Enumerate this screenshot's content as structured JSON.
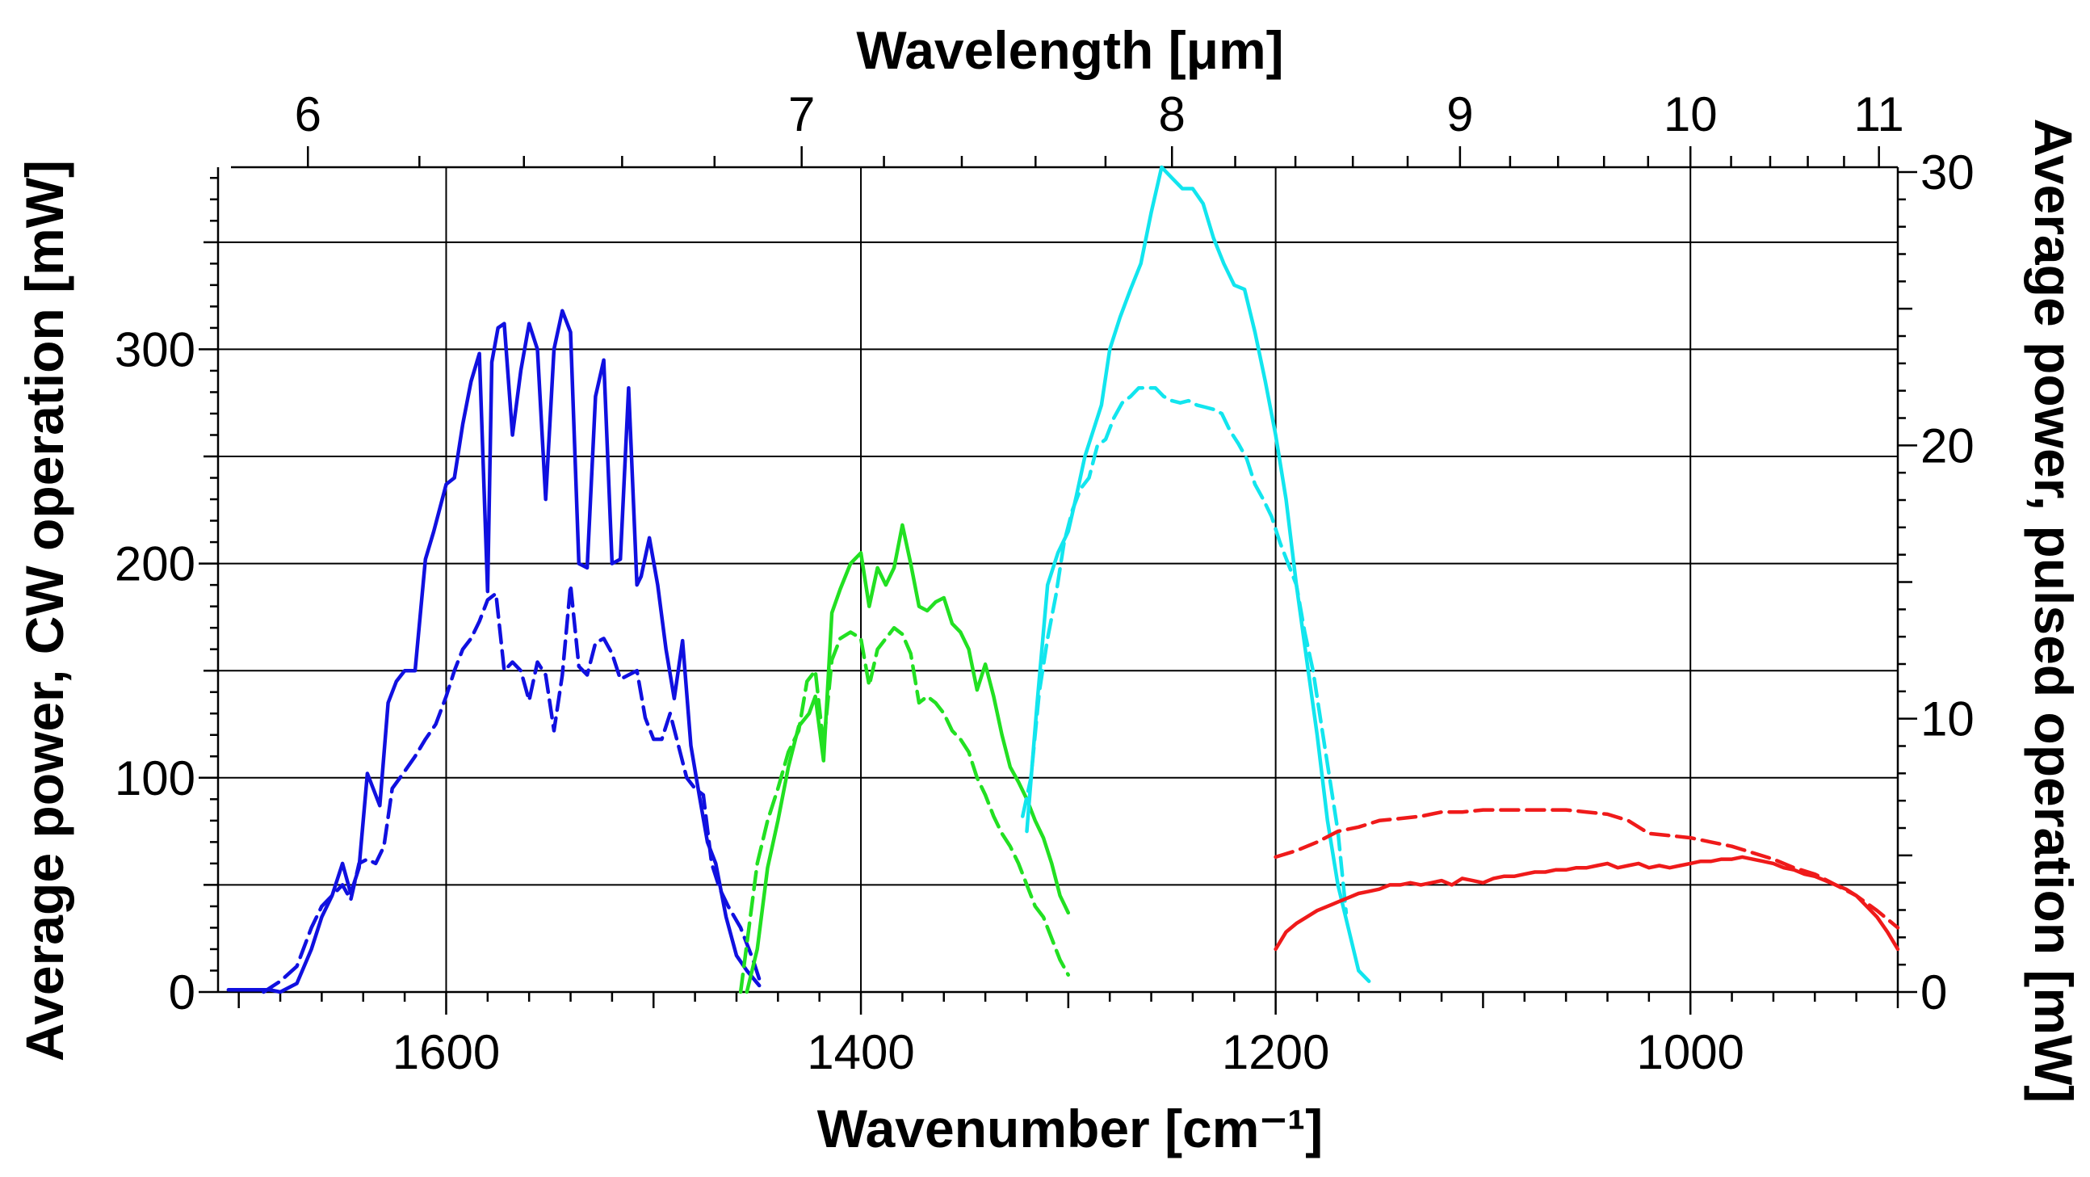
{
  "chart_data": {
    "type": "line",
    "xlabel_bottom": "Wavenumber [cm⁻¹]",
    "xlabel_top": "Wavelength [μm]",
    "ylabel_left": "Average power, CW operation [mW]",
    "ylabel_right": "Average power, pulsed operation [mW]",
    "xlim_wavenumber": [
      1710,
      900
    ],
    "ylim_left": [
      0,
      385
    ],
    "ylim_right": [
      0,
      30
    ],
    "bottom_ticks": [
      1600,
      1400,
      1200,
      1000
    ],
    "left_ticks": [
      0,
      100,
      200,
      300
    ],
    "right_ticks": [
      0,
      10,
      20,
      30
    ],
    "top_ticks": [
      6,
      7,
      8,
      9,
      10,
      11
    ],
    "top_minor_ticks": [
      6.2,
      6.4,
      6.6,
      6.8,
      7.2,
      7.4,
      7.6,
      7.8,
      8.2,
      8.4,
      8.6,
      8.8,
      9.2,
      9.4,
      9.6,
      9.8,
      10.2,
      10.4,
      10.6,
      10.8
    ],
    "horizontal_grid_left": [
      50,
      100,
      150,
      200,
      250,
      300,
      350
    ],
    "grid": true,
    "series": [
      {
        "name": "blue-cw",
        "color": "#1010e0",
        "style": "solid",
        "axis": "left",
        "x": [
          1705,
          1695,
          1685,
          1680,
          1672,
          1665,
          1660,
          1655,
          1650,
          1646,
          1642,
          1638,
          1632,
          1628,
          1624,
          1620,
          1615,
          1610,
          1606,
          1600,
          1596,
          1592,
          1588,
          1584,
          1580,
          1578,
          1575,
          1572,
          1568,
          1564,
          1560,
          1556,
          1552,
          1548,
          1544,
          1540,
          1536,
          1532,
          1528,
          1524,
          1520,
          1516,
          1512,
          1508,
          1506,
          1502,
          1498,
          1494,
          1490,
          1486,
          1482,
          1478,
          1474,
          1470,
          1465,
          1460,
          1455,
          1449
        ],
        "y": [
          1,
          1,
          1,
          0,
          4,
          20,
          35,
          45,
          60,
          46,
          58,
          102,
          87,
          135,
          145,
          150,
          150,
          202,
          215,
          237,
          240,
          265,
          285,
          298,
          187,
          294,
          310,
          312,
          260,
          290,
          312,
          300,
          230,
          300,
          318,
          308,
          200,
          198,
          278,
          295,
          200,
          202,
          282,
          190,
          194,
          212,
          190,
          160,
          137,
          164,
          115,
          92,
          70,
          60,
          35,
          17,
          10,
          3
        ]
      },
      {
        "name": "blue-pulsed",
        "color": "#1010e0",
        "style": "dashed",
        "axis": "left",
        "x": [
          1688,
          1680,
          1672,
          1665,
          1660,
          1655,
          1650,
          1646,
          1642,
          1638,
          1634,
          1630,
          1626,
          1620,
          1615,
          1610,
          1605,
          1600,
          1596,
          1592,
          1588,
          1584,
          1580,
          1576,
          1572,
          1568,
          1564,
          1560,
          1556,
          1552,
          1548,
          1544,
          1540,
          1536,
          1532,
          1528,
          1524,
          1520,
          1516,
          1512,
          1508,
          1504,
          1500,
          1496,
          1492,
          1488,
          1484,
          1480,
          1476,
          1472,
          1468,
          1464,
          1458,
          1452,
          1448
        ],
        "y": [
          0,
          5,
          12,
          30,
          40,
          45,
          50,
          43,
          60,
          62,
          60,
          68,
          95,
          103,
          110,
          118,
          125,
          138,
          150,
          160,
          165,
          173,
          183,
          186,
          150,
          154,
          150,
          136,
          154,
          148,
          122,
          148,
          190,
          152,
          148,
          163,
          165,
          158,
          146,
          148,
          150,
          128,
          118,
          118,
          130,
          115,
          100,
          95,
          92,
          60,
          48,
          40,
          30,
          15,
          3
        ]
      },
      {
        "name": "green-cw",
        "color": "#22e022",
        "style": "solid",
        "axis": "left",
        "x": [
          1455,
          1450,
          1445,
          1440,
          1435,
          1430,
          1425,
          1422,
          1418,
          1414,
          1410,
          1405,
          1400,
          1396,
          1392,
          1388,
          1384,
          1380,
          1376,
          1372,
          1368,
          1364,
          1360,
          1356,
          1352,
          1348,
          1344,
          1340,
          1336,
          1332,
          1328,
          1324,
          1320,
          1316,
          1312,
          1308,
          1304,
          1300
        ],
        "y": [
          0,
          20,
          58,
          80,
          105,
          124,
          130,
          138,
          108,
          177,
          188,
          200,
          205,
          180,
          198,
          190,
          198,
          218,
          200,
          180,
          178,
          182,
          184,
          172,
          168,
          160,
          141,
          153,
          138,
          120,
          105,
          98,
          90,
          80,
          72,
          60,
          45,
          37
        ]
      },
      {
        "name": "green-pulsed",
        "color": "#22e022",
        "style": "dashed",
        "axis": "left",
        "x": [
          1458,
          1450,
          1445,
          1440,
          1435,
          1430,
          1426,
          1422,
          1418,
          1414,
          1410,
          1405,
          1400,
          1396,
          1392,
          1388,
          1384,
          1380,
          1376,
          1372,
          1368,
          1364,
          1360,
          1356,
          1352,
          1348,
          1344,
          1340,
          1336,
          1332,
          1328,
          1324,
          1320,
          1316,
          1312,
          1308,
          1304,
          1300
        ],
        "y": [
          0,
          60,
          80,
          95,
          112,
          122,
          145,
          150,
          115,
          155,
          165,
          168,
          165,
          143,
          160,
          165,
          170,
          167,
          158,
          135,
          138,
          135,
          130,
          122,
          118,
          112,
          100,
          92,
          82,
          74,
          68,
          60,
          50,
          40,
          35,
          25,
          15,
          8
        ]
      },
      {
        "name": "cyan-cw",
        "color": "#12e5ee",
        "style": "solid",
        "axis": "left",
        "x": [
          1320,
          1315,
          1310,
          1305,
          1300,
          1296,
          1292,
          1288,
          1284,
          1280,
          1275,
          1270,
          1265,
          1260,
          1255,
          1250,
          1245,
          1240,
          1235,
          1230,
          1225,
          1220,
          1215,
          1210,
          1205,
          1200,
          1195,
          1190,
          1185,
          1180,
          1175,
          1170,
          1165,
          1160,
          1155
        ],
        "y": [
          75,
          135,
          190,
          205,
          215,
          232,
          250,
          262,
          274,
          300,
          315,
          328,
          340,
          364,
          385,
          380,
          375,
          375,
          368,
          352,
          340,
          330,
          328,
          308,
          285,
          260,
          230,
          190,
          155,
          120,
          80,
          50,
          30,
          10,
          5
        ]
      },
      {
        "name": "cyan-pulsed",
        "color": "#12e5ee",
        "style": "dashed",
        "axis": "left",
        "x": [
          1322,
          1318,
          1314,
          1310,
          1306,
          1302,
          1298,
          1294,
          1290,
          1286,
          1282,
          1278,
          1274,
          1270,
          1266,
          1262,
          1258,
          1254,
          1250,
          1246,
          1242,
          1238,
          1234,
          1230,
          1226,
          1222,
          1218,
          1214,
          1210,
          1206,
          1202,
          1198,
          1194,
          1190,
          1186,
          1182,
          1178,
          1174,
          1170,
          1166
        ],
        "y": [
          82,
          100,
          140,
          165,
          185,
          210,
          225,
          235,
          240,
          255,
          258,
          268,
          275,
          278,
          282,
          282,
          282,
          278,
          276,
          275,
          276,
          274,
          273,
          272,
          270,
          262,
          256,
          249,
          237,
          230,
          222,
          210,
          200,
          190,
          168,
          150,
          125,
          100,
          75,
          37
        ]
      },
      {
        "name": "red-cw",
        "color": "#ef1a1a",
        "style": "solid",
        "axis": "left",
        "x": [
          1200,
          1195,
          1190,
          1185,
          1180,
          1175,
          1170,
          1165,
          1160,
          1155,
          1150,
          1145,
          1140,
          1135,
          1130,
          1125,
          1120,
          1115,
          1110,
          1105,
          1100,
          1095,
          1090,
          1085,
          1080,
          1075,
          1070,
          1065,
          1060,
          1055,
          1050,
          1045,
          1040,
          1035,
          1030,
          1025,
          1020,
          1015,
          1010,
          1005,
          1000,
          995,
          990,
          985,
          980,
          975,
          970,
          965,
          960,
          955,
          950,
          945,
          940,
          935,
          930,
          925,
          920,
          915,
          910,
          905,
          900
        ],
        "y": [
          20,
          28,
          32,
          35,
          38,
          40,
          42,
          44,
          46,
          47,
          48,
          50,
          50,
          51,
          50,
          51,
          52,
          50,
          53,
          52,
          51,
          53,
          54,
          54,
          55,
          56,
          56,
          57,
          57,
          58,
          58,
          59,
          60,
          58,
          59,
          60,
          58,
          59,
          58,
          59,
          60,
          61,
          61,
          62,
          62,
          63,
          62,
          61,
          60,
          58,
          57,
          55,
          54,
          52,
          50,
          48,
          45,
          40,
          35,
          28,
          20
        ]
      },
      {
        "name": "red-pulsed",
        "color": "#ef1a1a",
        "style": "dashed",
        "axis": "left",
        "x": [
          1200,
          1190,
          1180,
          1170,
          1160,
          1150,
          1140,
          1130,
          1120,
          1110,
          1100,
          1090,
          1080,
          1070,
          1060,
          1050,
          1040,
          1030,
          1020,
          1010,
          1000,
          990,
          980,
          970,
          960,
          950,
          940,
          930,
          920,
          910,
          900
        ],
        "y": [
          63,
          66,
          70,
          75,
          77,
          80,
          81,
          82,
          84,
          84,
          85,
          85,
          85,
          85,
          85,
          84,
          83,
          80,
          74,
          73,
          72,
          70,
          68,
          65,
          62,
          58,
          55,
          50,
          45,
          38,
          30
        ]
      }
    ]
  }
}
